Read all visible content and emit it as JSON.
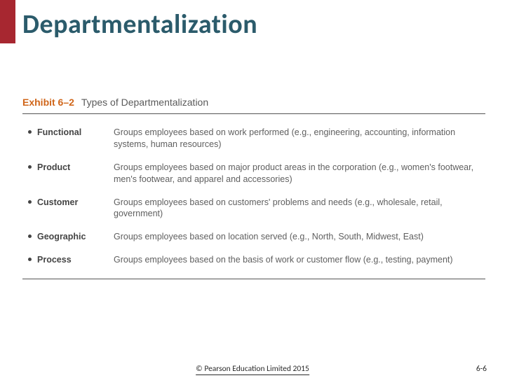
{
  "title": "Departmentalization",
  "exhibit": {
    "number": "Exhibit 6–2",
    "title": "Types of Departmentalization"
  },
  "rows": [
    {
      "label": "Functional",
      "desc": "Groups employees based on work performed (e.g., engineering, accounting, information systems, human resources)"
    },
    {
      "label": "Product",
      "desc": "Groups employees based on major product areas in the corporation (e.g., women's footwear, men's footwear, and apparel and accessories)"
    },
    {
      "label": "Customer",
      "desc": "Groups employees based on customers' problems and needs (e.g., wholesale, retail, government)"
    },
    {
      "label": "Geographic",
      "desc": "Groups employees based on location served (e.g., North, South, Midwest, East)"
    },
    {
      "label": "Process",
      "desc": "Groups employees based on the basis of work or customer flow (e.g., testing, payment)"
    }
  ],
  "footer": {
    "copyright": "© Pearson Education Limited 2015",
    "page": "6-6"
  },
  "colors": {
    "accent_red": "#a72730",
    "title_teal": "#2b5b6b",
    "exhibit_orange": "#d0661a",
    "body_text": "#5f5f5f"
  }
}
